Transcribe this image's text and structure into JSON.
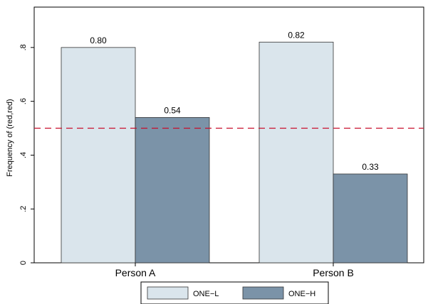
{
  "chart_data": {
    "type": "bar",
    "categories": [
      "Person A",
      "Person B"
    ],
    "series": [
      {
        "name": "ONE−L",
        "values": [
          0.8,
          0.82
        ],
        "labels": [
          "0.80",
          "0.82"
        ],
        "color": "#dae5ec"
      },
      {
        "name": "ONE−H",
        "values": [
          0.54,
          0.33
        ],
        "labels": [
          "0.54",
          "0.33"
        ],
        "color": "#7b93a8"
      }
    ],
    "title": "",
    "xlabel": "",
    "ylabel": "Frequency of (red,red)",
    "ylim": [
      0,
      0.95
    ],
    "yticks": [
      0,
      0.2,
      0.4,
      0.6,
      0.8
    ],
    "ytick_labels": [
      "0",
      ".2",
      ".4",
      ".6",
      ".8"
    ],
    "reference_line": {
      "y": 0.5,
      "style": "dashed",
      "color": "#c8102e"
    },
    "grid": false,
    "legend_position": "bottom"
  }
}
